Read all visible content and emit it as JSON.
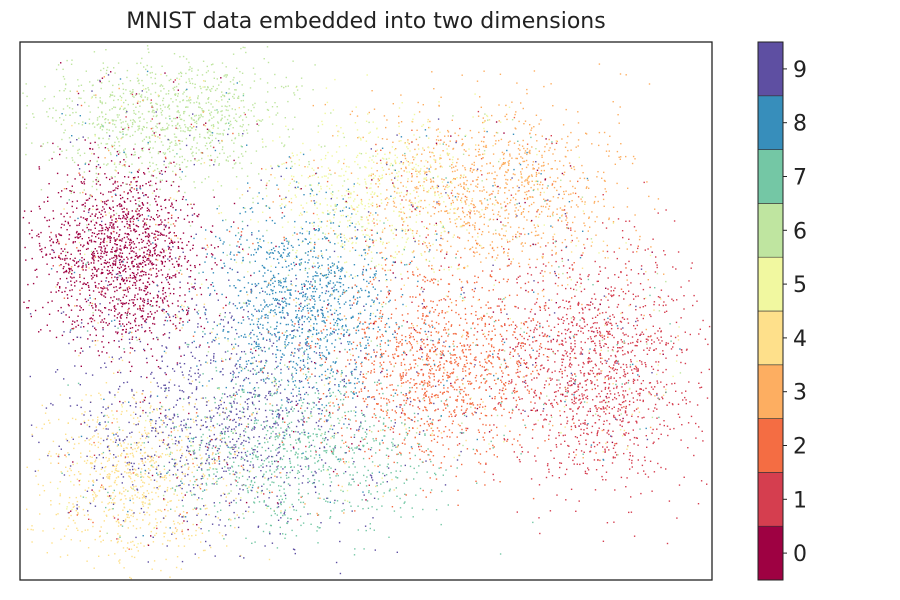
{
  "chart_data": {
    "type": "scatter",
    "title": "MNIST data embedded into two dimensions",
    "xlabel": "",
    "ylabel": "",
    "axes_ticks": "none",
    "grid": false,
    "colorbar": {
      "placement": "right",
      "labels": [
        "0",
        "1",
        "2",
        "3",
        "4",
        "5",
        "6",
        "7",
        "8",
        "9"
      ],
      "colors": [
        "#9e0142",
        "#d53e4f",
        "#f46d43",
        "#fdae61",
        "#fee08b",
        "#ffffbf",
        "#e6f598",
        "#abdda4",
        "#66c2a5",
        "#3288bd",
        "#5e4fa2"
      ]
    },
    "classes": [
      {
        "label": "0",
        "color": "#9e0142"
      },
      {
        "label": "1",
        "color": "#d53e4f"
      },
      {
        "label": "2",
        "color": "#f46d43"
      },
      {
        "label": "3",
        "color": "#fdae61"
      },
      {
        "label": "4",
        "color": "#fee08b"
      },
      {
        "label": "5",
        "color": "#f1f8a0"
      },
      {
        "label": "6",
        "color": "#bfe5a0"
      },
      {
        "label": "7",
        "color": "#74c7a5"
      },
      {
        "label": "8",
        "color": "#378ebb"
      },
      {
        "label": "9",
        "color": "#5e4fa2"
      }
    ]
  }
}
